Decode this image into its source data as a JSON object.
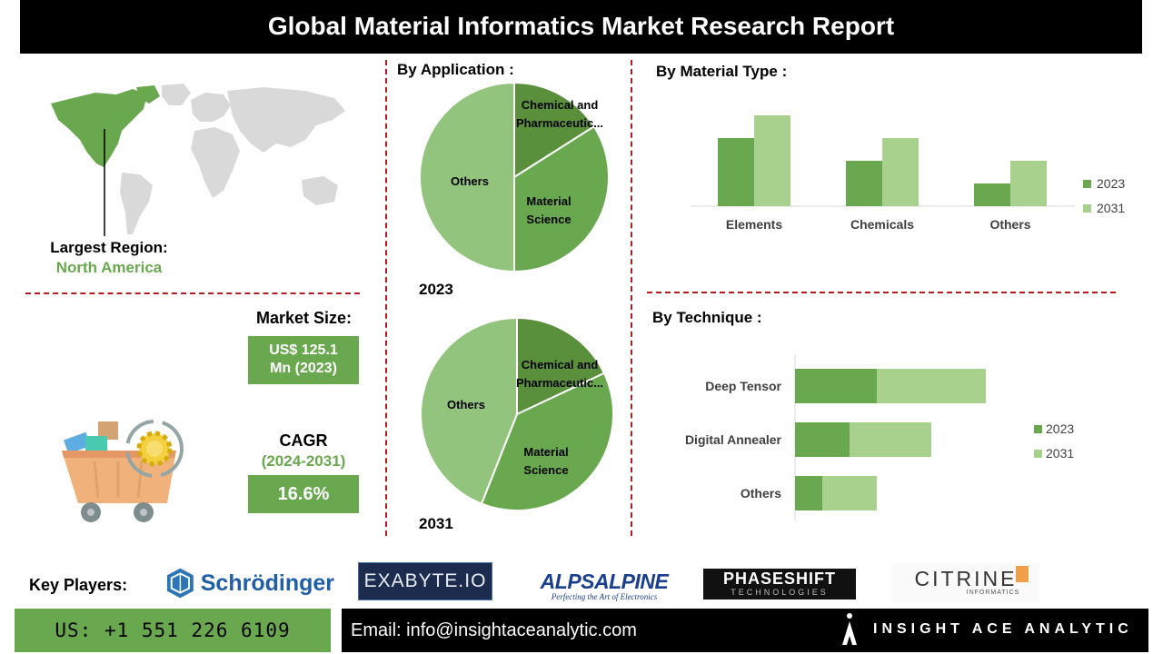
{
  "report": {
    "title": "Global Material Informatics Market Research Report"
  },
  "region": {
    "label": "Largest Region:",
    "value": "North America"
  },
  "market": {
    "size_label": "Market Size:",
    "size_value_line1": "US$ 125.1",
    "size_value_line2": "Mn (2023)",
    "cagr_label": "CAGR",
    "cagr_period": "(2024-2031)",
    "cagr_value": "16.6%"
  },
  "colors": {
    "accent_green": "#6aa84f",
    "dark_green": "#5a8f3c",
    "mid_green": "#6aa84f",
    "light_green": "#93c47d",
    "pale_green": "#a9d18e",
    "divider_red": "#b01e23"
  },
  "sections": {
    "application": "By Application :",
    "material_type": "By Material Type :",
    "technique": "By Technique :"
  },
  "chart_data": [
    {
      "type": "pie",
      "title": "By Application :",
      "caption": "2023",
      "labels": [
        "Chemical and Pharmaceutic...",
        "Material Science",
        "Others"
      ],
      "values": [
        16,
        34,
        50
      ]
    },
    {
      "type": "pie",
      "title": "By Application :",
      "caption": "2031",
      "labels": [
        "Chemical and Pharmaceutic...",
        "Material Science",
        "Others"
      ],
      "values": [
        18,
        38,
        44
      ]
    },
    {
      "type": "bar",
      "title": "By Material Type :",
      "categories": [
        "Elements",
        "Chemicals",
        "Others"
      ],
      "series": [
        {
          "name": "2023",
          "values": [
            3,
            2,
            1
          ]
        },
        {
          "name": "2031",
          "values": [
            4,
            3,
            2
          ]
        }
      ],
      "legend": "right"
    },
    {
      "type": "bar",
      "orientation": "horizontal-stacked",
      "title": "By Technique :",
      "categories": [
        "Deep Tensor",
        "Digital Annealer",
        "Others"
      ],
      "series": [
        {
          "name": "2023",
          "values": [
            3,
            2,
            1
          ]
        },
        {
          "name": "2031",
          "values": [
            4,
            3,
            2
          ]
        }
      ],
      "legend": "right"
    }
  ],
  "key_players": {
    "label": "Key Players:",
    "logos": [
      {
        "name": "Schrödinger"
      },
      {
        "name": "EXABYTE.IO"
      },
      {
        "name": "ALPSALPINE",
        "tagline": "Perfecting the Art of Electronics"
      },
      {
        "name": "PHASESHIFT",
        "tagline": "TECHNOLOGIES"
      },
      {
        "name": "CITRINE",
        "tagline": "INFORMATICS"
      }
    ]
  },
  "footer": {
    "phone": "US: +1 551 226 6109",
    "email": "Email: info@insightaceanalytic.com",
    "brand": "INSIGHT ACE ANALYTIC"
  }
}
